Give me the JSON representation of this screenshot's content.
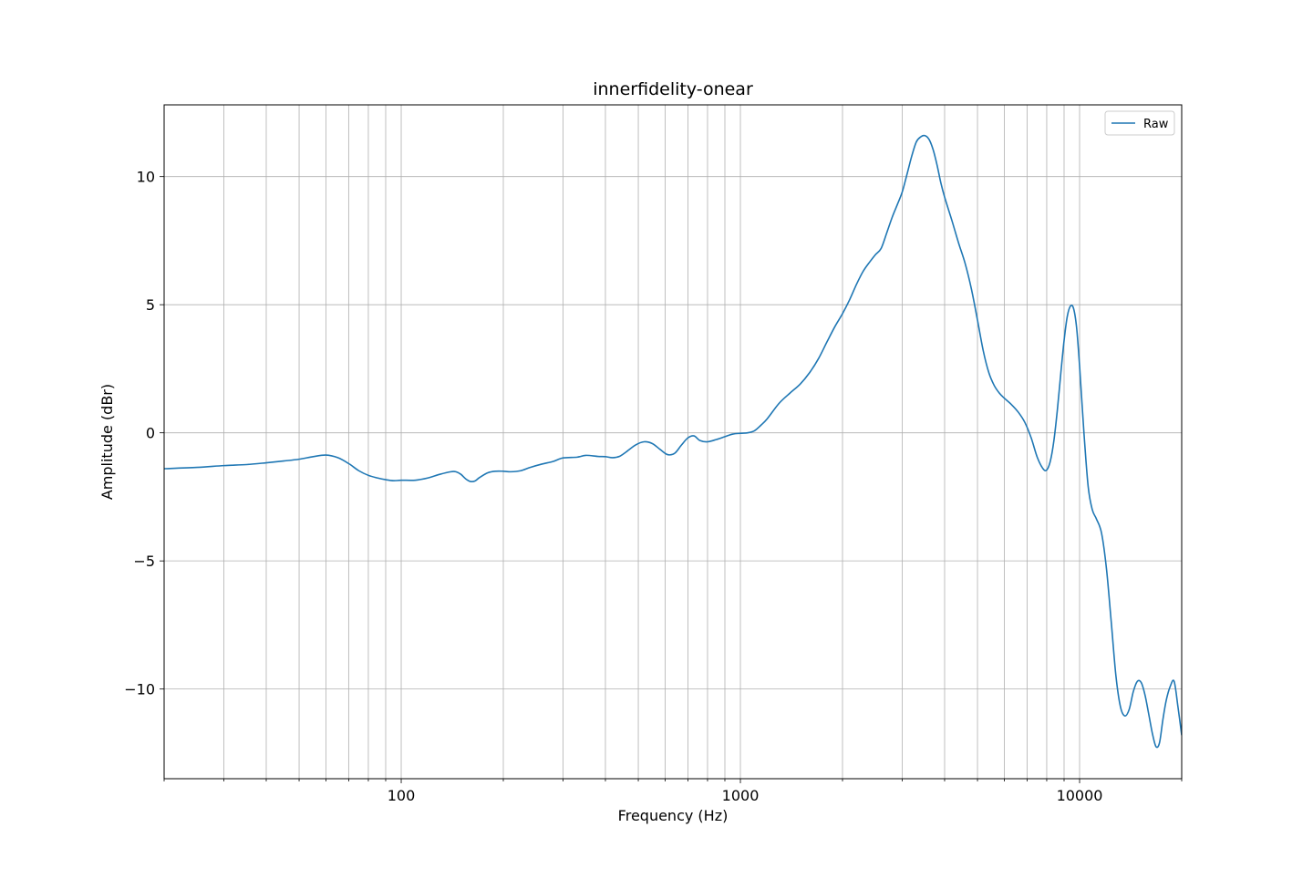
{
  "chart_data": {
    "type": "line",
    "title": "innerfidelity-onear",
    "xlabel": "Frequency (Hz)",
    "ylabel": "Amplitude (dBr)",
    "xscale": "log",
    "xlim": [
      20,
      20000
    ],
    "ylim": [
      -13.5,
      12.8
    ],
    "grid": true,
    "legend_position": "top-right",
    "x_tick_labels": [
      {
        "value": 100,
        "label": "100"
      },
      {
        "value": 1000,
        "label": "1000"
      },
      {
        "value": 10000,
        "label": "10000"
      }
    ],
    "y_tick_labels": [
      {
        "value": 10,
        "label": "10"
      },
      {
        "value": 5,
        "label": "5"
      },
      {
        "value": 0,
        "label": "0"
      },
      {
        "value": -5,
        "label": "−5"
      },
      {
        "value": -10,
        "label": "−10"
      }
    ],
    "series": [
      {
        "name": "Raw",
        "color": "#1f77b4",
        "points": [
          [
            20,
            -1.4
          ],
          [
            25,
            -1.35
          ],
          [
            30,
            -1.28
          ],
          [
            35,
            -1.24
          ],
          [
            40,
            -1.17
          ],
          [
            45,
            -1.1
          ],
          [
            50,
            -1.03
          ],
          [
            55,
            -0.93
          ],
          [
            60,
            -0.87
          ],
          [
            65,
            -0.97
          ],
          [
            70,
            -1.2
          ],
          [
            75,
            -1.48
          ],
          [
            80,
            -1.66
          ],
          [
            85,
            -1.76
          ],
          [
            90,
            -1.83
          ],
          [
            95,
            -1.87
          ],
          [
            100,
            -1.85
          ],
          [
            110,
            -1.85
          ],
          [
            120,
            -1.76
          ],
          [
            130,
            -1.62
          ],
          [
            140,
            -1.52
          ],
          [
            145,
            -1.52
          ],
          [
            150,
            -1.62
          ],
          [
            155,
            -1.8
          ],
          [
            160,
            -1.9
          ],
          [
            165,
            -1.88
          ],
          [
            170,
            -1.75
          ],
          [
            180,
            -1.56
          ],
          [
            190,
            -1.5
          ],
          [
            200,
            -1.5
          ],
          [
            210,
            -1.52
          ],
          [
            225,
            -1.48
          ],
          [
            240,
            -1.35
          ],
          [
            260,
            -1.22
          ],
          [
            280,
            -1.12
          ],
          [
            300,
            -0.98
          ],
          [
            330,
            -0.95
          ],
          [
            350,
            -0.88
          ],
          [
            380,
            -0.92
          ],
          [
            400,
            -0.93
          ],
          [
            420,
            -0.97
          ],
          [
            440,
            -0.92
          ],
          [
            460,
            -0.75
          ],
          [
            490,
            -0.48
          ],
          [
            520,
            -0.35
          ],
          [
            550,
            -0.42
          ],
          [
            580,
            -0.65
          ],
          [
            610,
            -0.85
          ],
          [
            640,
            -0.8
          ],
          [
            670,
            -0.48
          ],
          [
            700,
            -0.2
          ],
          [
            730,
            -0.12
          ],
          [
            760,
            -0.3
          ],
          [
            800,
            -0.35
          ],
          [
            850,
            -0.26
          ],
          [
            900,
            -0.15
          ],
          [
            950,
            -0.05
          ],
          [
            1000,
            -0.02
          ],
          [
            1050,
            0.0
          ],
          [
            1100,
            0.08
          ],
          [
            1150,
            0.3
          ],
          [
            1200,
            0.55
          ],
          [
            1300,
            1.15
          ],
          [
            1400,
            1.55
          ],
          [
            1500,
            1.9
          ],
          [
            1600,
            2.35
          ],
          [
            1700,
            2.9
          ],
          [
            1800,
            3.55
          ],
          [
            1900,
            4.15
          ],
          [
            2000,
            4.65
          ],
          [
            2100,
            5.2
          ],
          [
            2200,
            5.8
          ],
          [
            2300,
            6.3
          ],
          [
            2400,
            6.65
          ],
          [
            2500,
            6.95
          ],
          [
            2600,
            7.2
          ],
          [
            2700,
            7.8
          ],
          [
            2800,
            8.4
          ],
          [
            2900,
            8.9
          ],
          [
            3000,
            9.4
          ],
          [
            3100,
            10.1
          ],
          [
            3200,
            10.8
          ],
          [
            3300,
            11.35
          ],
          [
            3400,
            11.55
          ],
          [
            3500,
            11.6
          ],
          [
            3600,
            11.45
          ],
          [
            3700,
            11.05
          ],
          [
            3800,
            10.45
          ],
          [
            3900,
            9.75
          ],
          [
            4000,
            9.2
          ],
          [
            4200,
            8.3
          ],
          [
            4400,
            7.4
          ],
          [
            4600,
            6.6
          ],
          [
            4800,
            5.6
          ],
          [
            5000,
            4.4
          ],
          [
            5200,
            3.2
          ],
          [
            5400,
            2.35
          ],
          [
            5600,
            1.85
          ],
          [
            5800,
            1.55
          ],
          [
            6000,
            1.35
          ],
          [
            6300,
            1.1
          ],
          [
            6600,
            0.8
          ],
          [
            6900,
            0.4
          ],
          [
            7200,
            -0.2
          ],
          [
            7500,
            -0.95
          ],
          [
            7800,
            -1.4
          ],
          [
            8000,
            -1.45
          ],
          [
            8200,
            -1.1
          ],
          [
            8400,
            -0.3
          ],
          [
            8600,
            0.9
          ],
          [
            8800,
            2.3
          ],
          [
            9000,
            3.6
          ],
          [
            9200,
            4.55
          ],
          [
            9400,
            4.95
          ],
          [
            9600,
            4.85
          ],
          [
            9800,
            4.1
          ],
          [
            10000,
            2.6
          ],
          [
            10300,
            0.0
          ],
          [
            10600,
            -2.1
          ],
          [
            10900,
            -3.0
          ],
          [
            11200,
            -3.35
          ],
          [
            11600,
            -3.9
          ],
          [
            12000,
            -5.3
          ],
          [
            12400,
            -7.4
          ],
          [
            12800,
            -9.5
          ],
          [
            13200,
            -10.7
          ],
          [
            13600,
            -11.05
          ],
          [
            14000,
            -10.8
          ],
          [
            14400,
            -10.1
          ],
          [
            14800,
            -9.7
          ],
          [
            15200,
            -9.75
          ],
          [
            15600,
            -10.25
          ],
          [
            16000,
            -11.0
          ],
          [
            16400,
            -11.75
          ],
          [
            16800,
            -12.25
          ],
          [
            17200,
            -12.1
          ],
          [
            17600,
            -11.2
          ],
          [
            18000,
            -10.45
          ],
          [
            18500,
            -9.9
          ],
          [
            19000,
            -9.7
          ],
          [
            19500,
            -10.7
          ],
          [
            20000,
            -11.8
          ]
        ]
      }
    ]
  }
}
